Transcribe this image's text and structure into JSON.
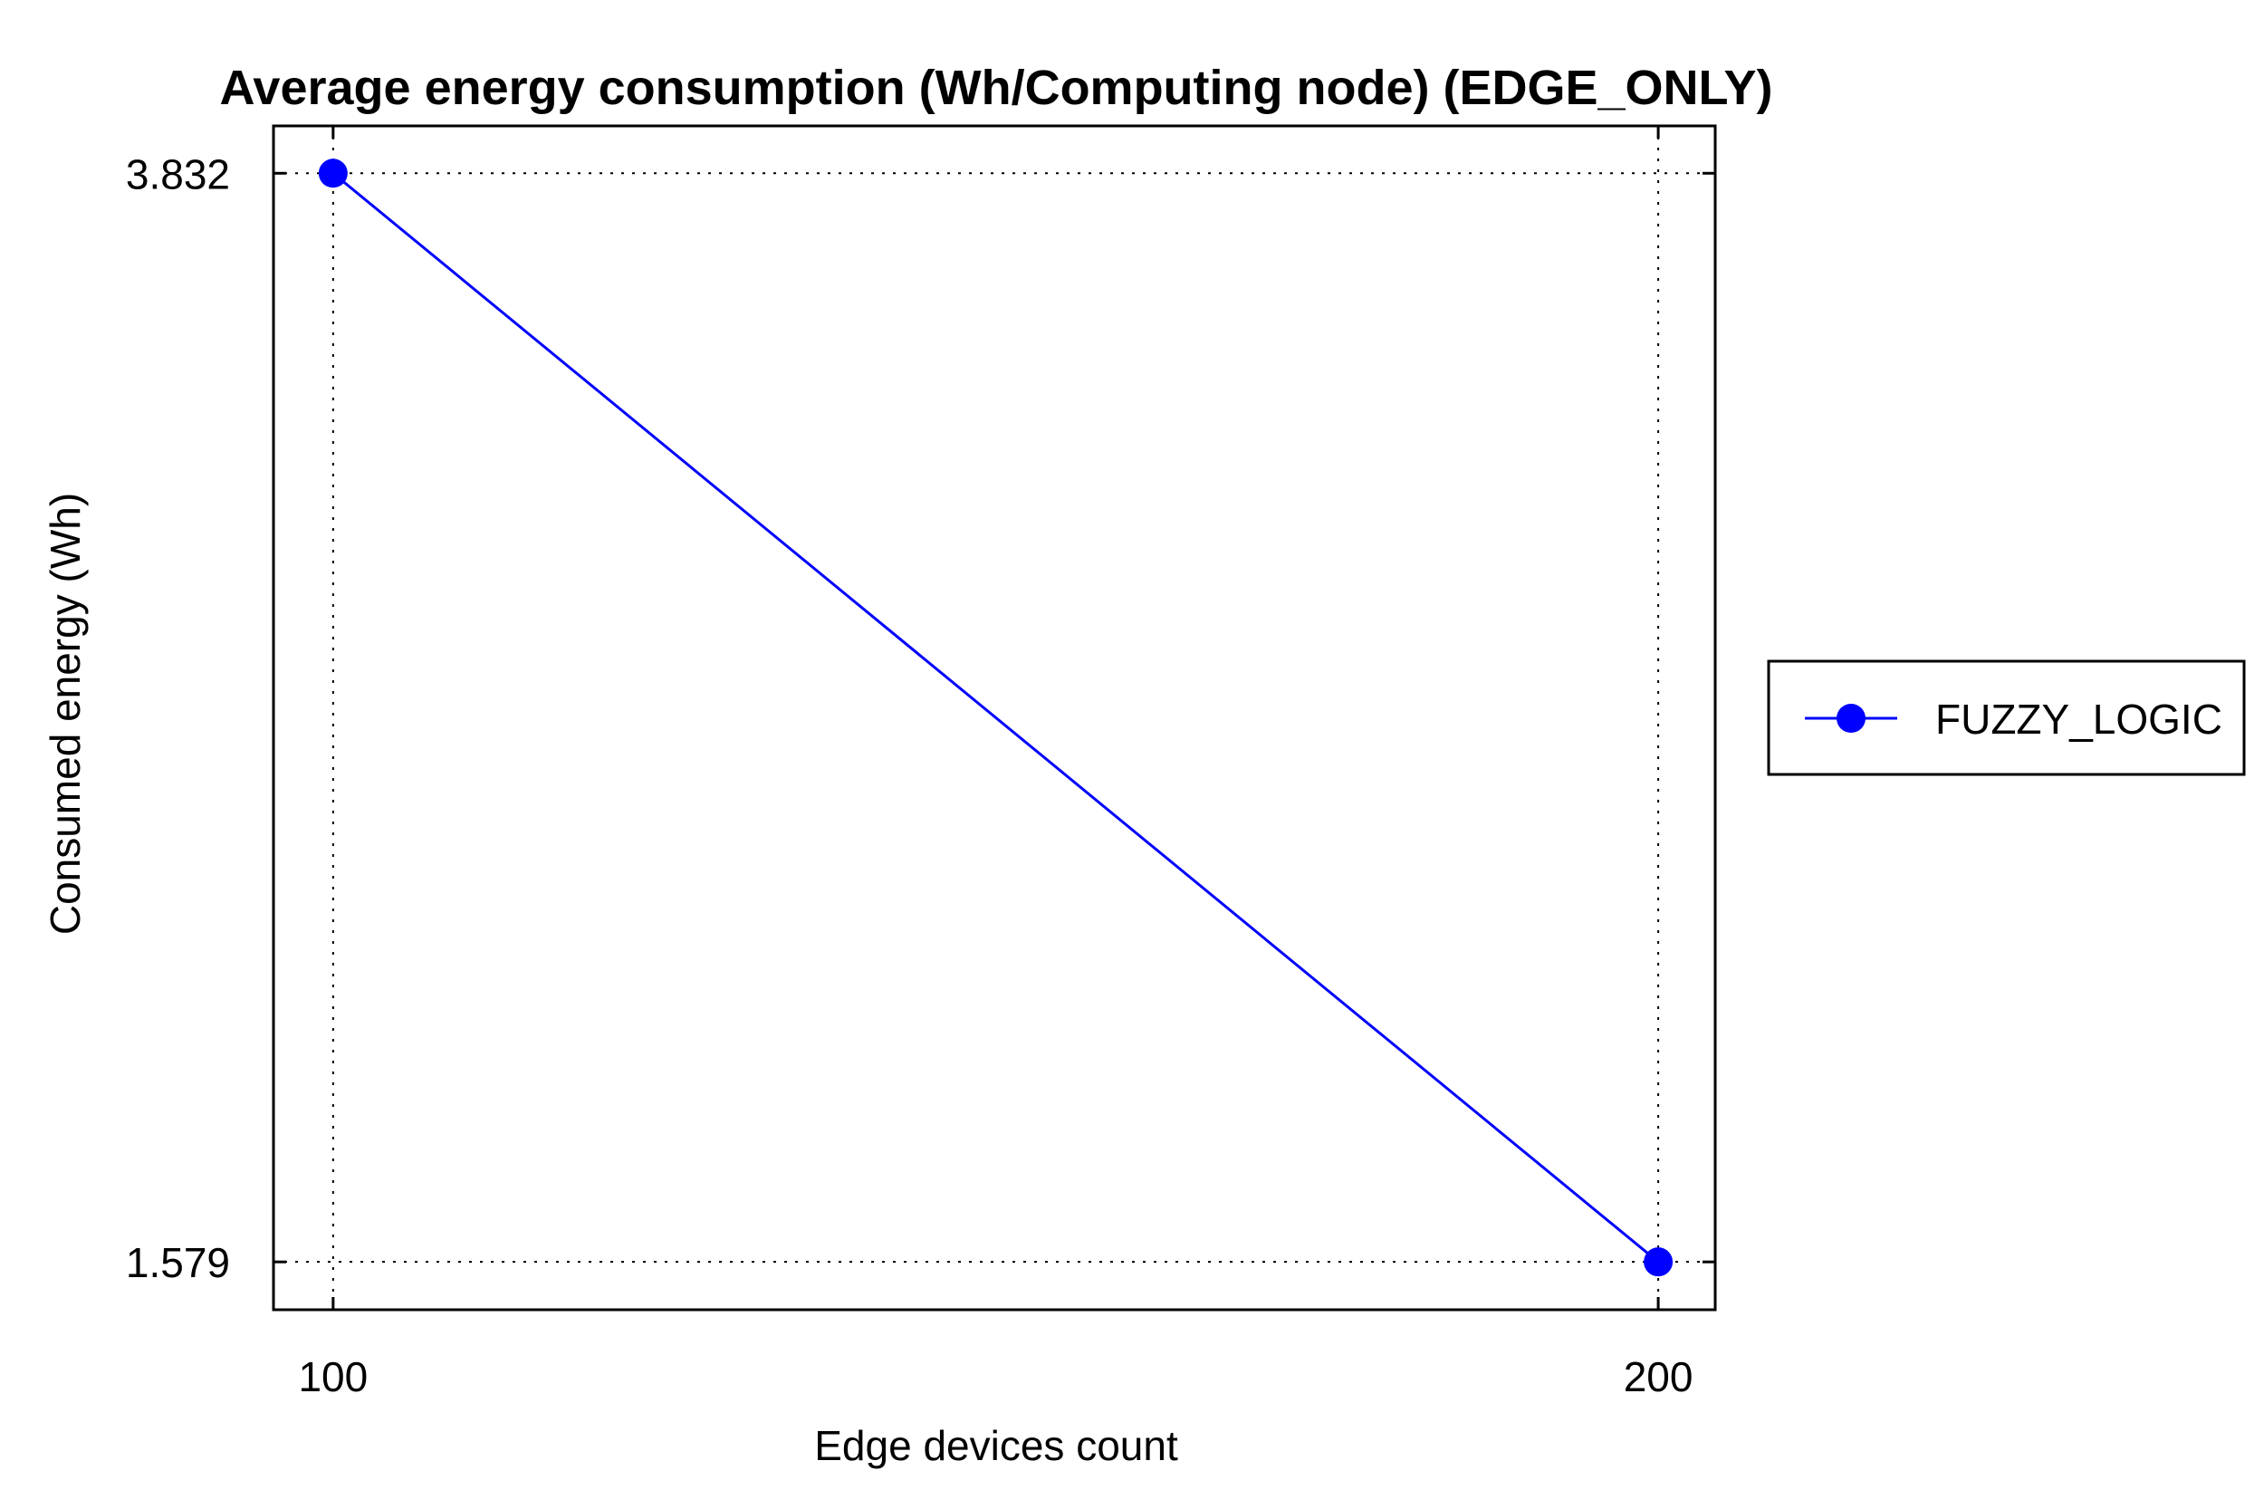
{
  "chart_data": {
    "type": "line",
    "title": "Average energy consumption (Wh/Computing node) (EDGE_ONLY)",
    "xlabel": "Edge devices count",
    "ylabel": "Consumed energy (Wh)",
    "x": [
      100,
      200
    ],
    "x_tick_labels": [
      "100",
      "200"
    ],
    "y_tick_labels": [
      "3.832",
      "1.579"
    ],
    "y_ticks": [
      3.832,
      1.579
    ],
    "series": [
      {
        "name": "FUZZY_LOGIC",
        "values": [
          3.832,
          1.579
        ],
        "color": "#0000ff",
        "marker": "circle"
      }
    ],
    "xlim": [
      95.5,
      204.3
    ],
    "ylim": [
      1.48,
      3.93
    ],
    "grid": true,
    "grid_style": "dotted",
    "legend_position": "right"
  }
}
